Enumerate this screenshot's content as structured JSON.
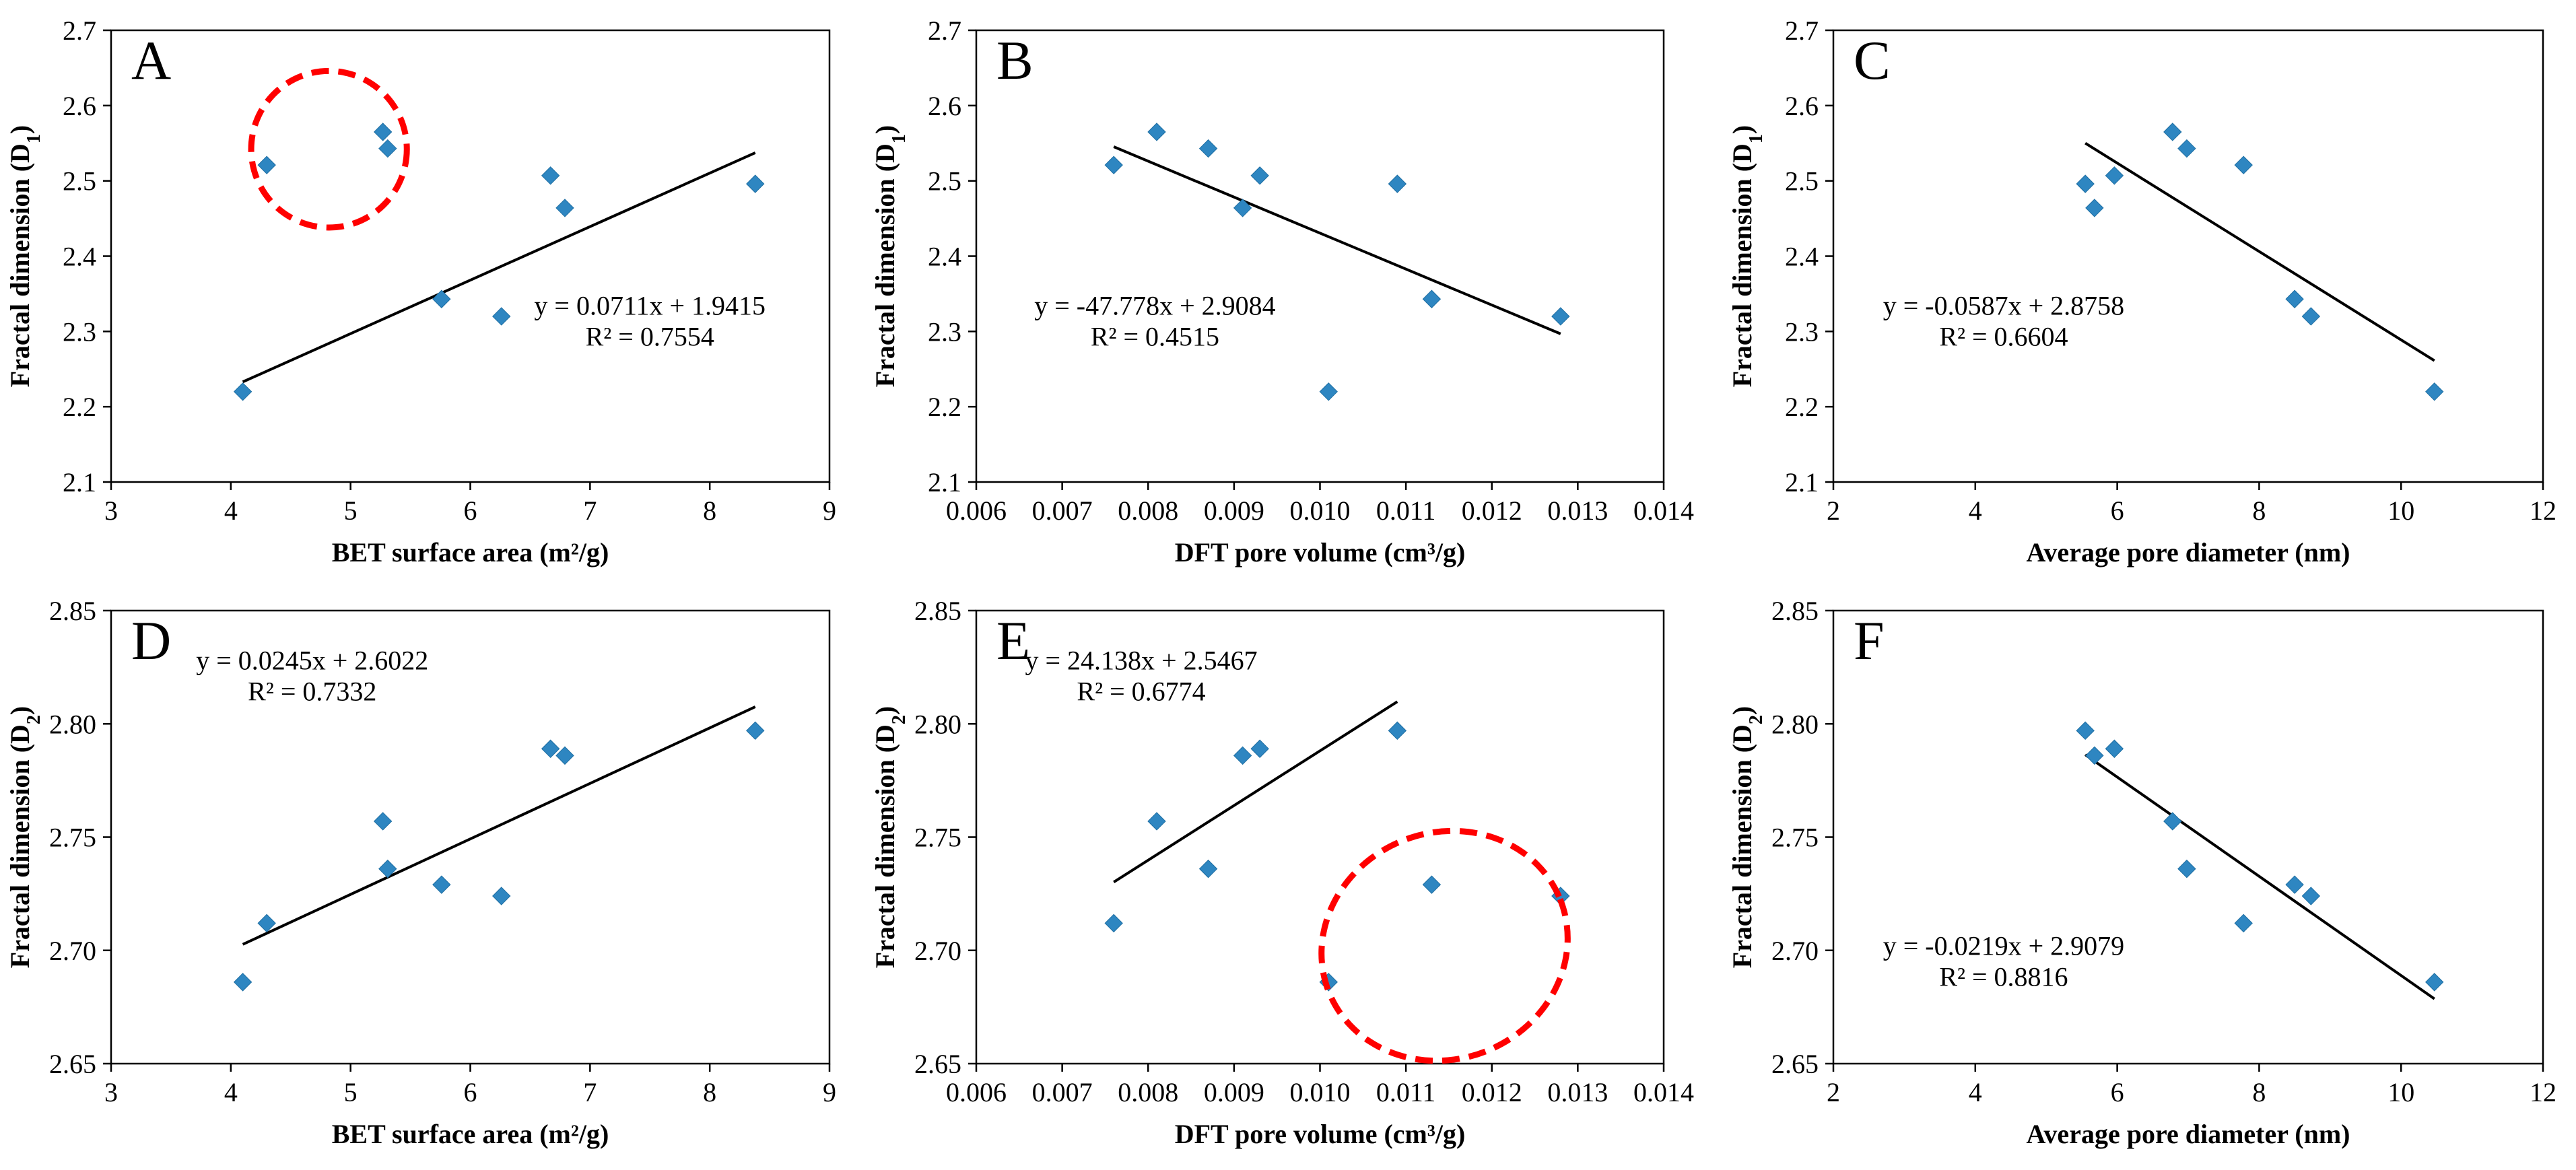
{
  "colors": {
    "marker": "#2e86c1",
    "trendline": "#000000",
    "highlight": "#ff0000"
  },
  "chart_data": [
    {
      "type": "scatter",
      "panel": "A",
      "xlabel": "BET surface area (m²/g)",
      "ylabel": "Fractal dimension (D1)",
      "xlim": [
        3,
        9
      ],
      "ylim": [
        2.1,
        2.7
      ],
      "xticks": [
        "3",
        "4",
        "5",
        "6",
        "7",
        "8",
        "9"
      ],
      "yticks": [
        "2.1",
        "2.2",
        "2.3",
        "2.4",
        "2.5",
        "2.6",
        "2.7"
      ],
      "x": [
        4.1,
        4.3,
        5.27,
        5.31,
        5.76,
        6.26,
        6.67,
        6.79,
        8.38
      ],
      "y": [
        2.22,
        2.521,
        2.565,
        2.543,
        2.343,
        2.32,
        2.507,
        2.464,
        2.496
      ],
      "trend": {
        "slope": 0.0711,
        "intercept": 1.9415,
        "x_range": [
          4.1,
          8.38
        ]
      },
      "equation": "y = 0.0711x + 1.9415",
      "r2": "R² = 0.7554",
      "highlight": "circle around the points at x≈4.3–5.3"
    },
    {
      "type": "scatter",
      "panel": "B",
      "xlabel": "DFT pore volume (cm³/g)",
      "ylabel": "Fractal dimension (D1)",
      "xlim": [
        0.006,
        0.014
      ],
      "ylim": [
        2.1,
        2.7
      ],
      "xticks": [
        "0.006",
        "0.007",
        "0.008",
        "0.009",
        "0.010",
        "0.011",
        "0.012",
        "0.013",
        "0.014"
      ],
      "yticks": [
        "2.1",
        "2.2",
        "2.3",
        "2.4",
        "2.5",
        "2.6",
        "2.7"
      ],
      "x": [
        0.0076,
        0.0081,
        0.0087,
        0.0091,
        0.0093,
        0.0101,
        0.0109,
        0.0113,
        0.0128
      ],
      "y": [
        2.521,
        2.565,
        2.543,
        2.464,
        2.507,
        2.22,
        2.496,
        2.343,
        2.32
      ],
      "trend": {
        "slope": -47.778,
        "intercept": 2.9084,
        "x_range": [
          0.0076,
          0.0128
        ]
      },
      "equation": "y = -47.778x + 2.9084",
      "r2": "R² = 0.4515"
    },
    {
      "type": "scatter",
      "panel": "C",
      "xlabel": "Average pore diameter (nm)",
      "ylabel": "Fractal dimension (D1)",
      "xlim": [
        2,
        12
      ],
      "ylim": [
        2.1,
        2.7
      ],
      "xticks": [
        "2",
        "4",
        "6",
        "8",
        "10",
        "12"
      ],
      "yticks": [
        "2.1",
        "2.2",
        "2.3",
        "2.4",
        "2.5",
        "2.6",
        "2.7"
      ],
      "x": [
        5.55,
        5.68,
        5.96,
        6.78,
        6.98,
        7.78,
        8.5,
        8.73,
        10.47
      ],
      "y": [
        2.496,
        2.464,
        2.507,
        2.565,
        2.543,
        2.521,
        2.343,
        2.32,
        2.22
      ],
      "trend": {
        "slope": -0.0587,
        "intercept": 2.8758,
        "x_range": [
          5.55,
          10.47
        ]
      },
      "equation": "y = -0.0587x + 2.8758",
      "r2": "R² = 0.6604"
    },
    {
      "type": "scatter",
      "panel": "D",
      "xlabel": "BET surface area (m²/g)",
      "ylabel": "Fractal dimension (D2)",
      "xlim": [
        3,
        9
      ],
      "ylim": [
        2.65,
        2.85
      ],
      "xticks": [
        "3",
        "4",
        "5",
        "6",
        "7",
        "8",
        "9"
      ],
      "yticks": [
        "2.65",
        "2.70",
        "2.75",
        "2.80",
        "2.85"
      ],
      "x": [
        4.1,
        4.3,
        5.27,
        5.31,
        5.76,
        6.26,
        6.67,
        6.79,
        8.38
      ],
      "y": [
        2.686,
        2.712,
        2.757,
        2.736,
        2.729,
        2.724,
        2.789,
        2.786,
        2.797
      ],
      "trend": {
        "slope": 0.0245,
        "intercept": 2.6022,
        "x_range": [
          4.1,
          8.38
        ]
      },
      "equation": "y = 0.0245x + 2.6022",
      "r2": "R² = 0.7332"
    },
    {
      "type": "scatter",
      "panel": "E",
      "xlabel": "DFT pore volume (cm³/g)",
      "ylabel": "Fractal dimension (D2)",
      "xlim": [
        0.006,
        0.014
      ],
      "ylim": [
        2.65,
        2.85
      ],
      "xticks": [
        "0.006",
        "0.007",
        "0.008",
        "0.009",
        "0.010",
        "0.011",
        "0.012",
        "0.013",
        "0.014"
      ],
      "yticks": [
        "2.65",
        "2.70",
        "2.75",
        "2.80",
        "2.85"
      ],
      "x": [
        0.0076,
        0.0081,
        0.0087,
        0.0091,
        0.0093,
        0.0101,
        0.0109,
        0.0113,
        0.0128
      ],
      "y": [
        2.712,
        2.757,
        2.736,
        2.786,
        2.789,
        2.686,
        2.797,
        2.729,
        2.724
      ],
      "trend": {
        "slope": 24.138,
        "intercept": 2.5467,
        "x_range": [
          0.0076,
          0.0109
        ]
      },
      "equation": "y = 24.138x + 2.5467",
      "r2": "R² = 0.6774",
      "highlight": "ellipse around the points at x≈0.0101–0.0128"
    },
    {
      "type": "scatter",
      "panel": "F",
      "xlabel": "Average pore diameter (nm)",
      "ylabel": "Fractal dimension (D2)",
      "xlim": [
        2,
        12
      ],
      "ylim": [
        2.65,
        2.85
      ],
      "xticks": [
        "2",
        "4",
        "6",
        "8",
        "10",
        "12"
      ],
      "yticks": [
        "2.65",
        "2.70",
        "2.75",
        "2.80",
        "2.85"
      ],
      "x": [
        5.55,
        5.68,
        5.96,
        6.78,
        6.98,
        7.78,
        8.5,
        8.73,
        10.47
      ],
      "y": [
        2.797,
        2.786,
        2.789,
        2.757,
        2.736,
        2.712,
        2.729,
        2.724,
        2.686
      ],
      "trend": {
        "slope": -0.0219,
        "intercept": 2.9079,
        "x_range": [
          5.55,
          10.47
        ]
      },
      "equation": "y = -0.0219x + 2.9079",
      "r2": "R² = 0.8816"
    }
  ]
}
